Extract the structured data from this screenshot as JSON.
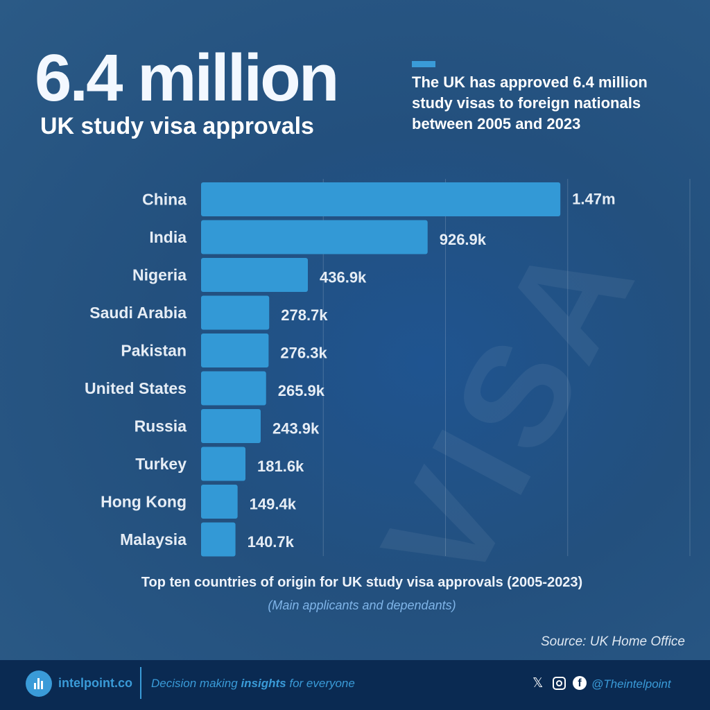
{
  "header": {
    "headline": "6.4 million",
    "subheadline": "UK study visa approvals",
    "description": "The UK has approved 6.4 million study visas to foreign nationals between 2005 and 2023"
  },
  "chart_data": {
    "type": "bar",
    "orientation": "horizontal",
    "categories": [
      "China",
      "India",
      "Nigeria",
      "Saudi Arabia",
      "Pakistan",
      "United States",
      "Russia",
      "Turkey",
      "Hong Kong",
      "Malaysia"
    ],
    "values": [
      1470000,
      926900,
      436900,
      278700,
      276300,
      265900,
      243900,
      181600,
      149400,
      140700
    ],
    "value_labels": [
      "1.47m",
      "926.9k",
      "436.9k",
      "278.7k",
      "276.3k",
      "265.9k",
      "243.9k",
      "181.6k",
      "149.4k",
      "140.7k"
    ],
    "title": "Top ten countries of origin for UK study visa approvals (2005-2023)",
    "subtitle": "(Main applicants and dependants)",
    "xlim": [
      0,
      2000000
    ],
    "gridlines": [
      500000,
      1000000,
      1500000,
      2000000
    ],
    "grid": true,
    "bar_color": "#3399d6"
  },
  "source": "Source: UK Home Office",
  "footer": {
    "brand": "intelpoint.co",
    "tagline_pre": "Decision making ",
    "tagline_bold": "insights",
    "tagline_post": " for everyone",
    "handle": "@Theintelpoint",
    "icons": [
      "x-icon",
      "instagram-icon",
      "facebook-icon"
    ]
  }
}
